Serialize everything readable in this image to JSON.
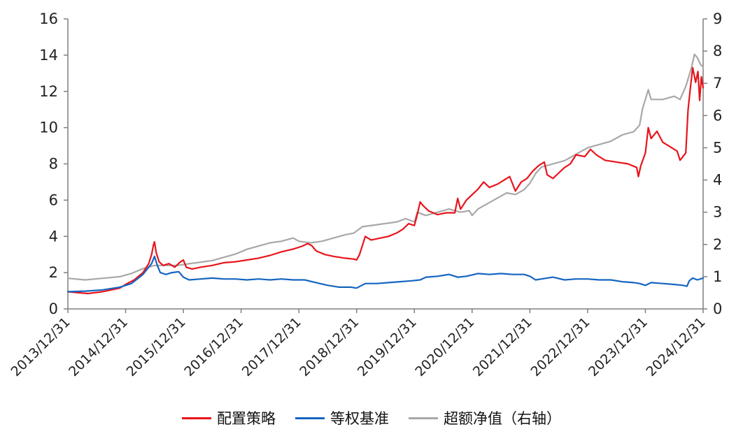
{
  "colors": {
    "strategy": "#e8141c",
    "benchmark": "#1565c0",
    "excess": "#a8a8a8",
    "axis": "#7f7f7f"
  },
  "chart_data": {
    "type": "line",
    "x_tick_labels": [
      "2013/12/31",
      "2014/12/31",
      "2015/12/31",
      "2016/12/31",
      "2017/12/31",
      "2018/12/31",
      "2019/12/31",
      "2020/12/31",
      "2021/12/31",
      "2022/12/31",
      "2023/12/31",
      "2024/12/31"
    ],
    "y_left": {
      "min": 0,
      "max": 16,
      "ticks": [
        0,
        2,
        4,
        6,
        8,
        10,
        12,
        14,
        16
      ]
    },
    "y_right": {
      "min": 0,
      "max": 9,
      "ticks": [
        0,
        1,
        2,
        3,
        4,
        5,
        6,
        7,
        8,
        9
      ]
    },
    "grid": false,
    "legend_position": "bottom",
    "series": [
      {
        "name": "配置策略",
        "axis": "left",
        "color_key": "strategy",
        "points": [
          [
            2013.0,
            0.95
          ],
          [
            2013.15,
            0.9
          ],
          [
            2013.35,
            0.85
          ],
          [
            2013.6,
            0.95
          ],
          [
            2013.9,
            1.15
          ],
          [
            2014.0,
            1.35
          ],
          [
            2014.15,
            1.6
          ],
          [
            2014.3,
            2.0
          ],
          [
            2014.4,
            2.5
          ],
          [
            2014.45,
            3.0
          ],
          [
            2014.48,
            3.5
          ],
          [
            2014.5,
            3.7
          ],
          [
            2014.53,
            3.1
          ],
          [
            2014.58,
            2.6
          ],
          [
            2014.65,
            2.4
          ],
          [
            2014.75,
            2.5
          ],
          [
            2014.85,
            2.3
          ],
          [
            2014.95,
            2.6
          ],
          [
            2015.0,
            2.7
          ],
          [
            2015.05,
            2.3
          ],
          [
            2015.15,
            2.2
          ],
          [
            2015.3,
            2.3
          ],
          [
            2015.5,
            2.4
          ],
          [
            2015.7,
            2.55
          ],
          [
            2015.9,
            2.6
          ],
          [
            2016.1,
            2.7
          ],
          [
            2016.3,
            2.8
          ],
          [
            2016.5,
            2.95
          ],
          [
            2016.7,
            3.15
          ],
          [
            2016.9,
            3.3
          ],
          [
            2017.05,
            3.45
          ],
          [
            2017.15,
            3.6
          ],
          [
            2017.22,
            3.5
          ],
          [
            2017.3,
            3.2
          ],
          [
            2017.45,
            3.0
          ],
          [
            2017.6,
            2.9
          ],
          [
            2017.8,
            2.8
          ],
          [
            2017.95,
            2.75
          ],
          [
            2018.0,
            2.7
          ],
          [
            2018.05,
            3.0
          ],
          [
            2018.1,
            3.5
          ],
          [
            2018.15,
            4.0
          ],
          [
            2018.25,
            3.8
          ],
          [
            2018.4,
            3.9
          ],
          [
            2018.55,
            4.0
          ],
          [
            2018.7,
            4.2
          ],
          [
            2018.8,
            4.4
          ],
          [
            2018.9,
            4.7
          ],
          [
            2019.0,
            4.6
          ],
          [
            2019.05,
            5.2
          ],
          [
            2019.1,
            5.9
          ],
          [
            2019.15,
            5.7
          ],
          [
            2019.25,
            5.4
          ],
          [
            2019.4,
            5.2
          ],
          [
            2019.55,
            5.3
          ],
          [
            2019.7,
            5.3
          ],
          [
            2019.75,
            6.1
          ],
          [
            2019.8,
            5.5
          ],
          [
            2019.9,
            6.0
          ],
          [
            2020.0,
            6.3
          ],
          [
            2020.1,
            6.6
          ],
          [
            2020.2,
            7.0
          ],
          [
            2020.3,
            6.7
          ],
          [
            2020.45,
            6.9
          ],
          [
            2020.55,
            7.1
          ],
          [
            2020.65,
            7.3
          ],
          [
            2020.75,
            6.5
          ],
          [
            2020.85,
            7.0
          ],
          [
            2020.95,
            7.2
          ],
          [
            2021.05,
            7.6
          ],
          [
            2021.15,
            7.9
          ],
          [
            2021.25,
            8.1
          ],
          [
            2021.3,
            7.4
          ],
          [
            2021.4,
            7.2
          ],
          [
            2021.5,
            7.5
          ],
          [
            2021.6,
            7.8
          ],
          [
            2021.7,
            8.0
          ],
          [
            2021.8,
            8.5
          ],
          [
            2021.95,
            8.4
          ],
          [
            2022.05,
            8.8
          ],
          [
            2022.15,
            8.5
          ],
          [
            2022.3,
            8.2
          ],
          [
            2022.5,
            8.1
          ],
          [
            2022.7,
            8.0
          ],
          [
            2022.85,
            7.8
          ],
          [
            2022.88,
            7.3
          ],
          [
            2022.92,
            7.9
          ],
          [
            2023.0,
            8.6
          ],
          [
            2023.05,
            10.0
          ],
          [
            2023.1,
            9.4
          ],
          [
            2023.2,
            9.8
          ],
          [
            2023.3,
            9.2
          ],
          [
            2023.4,
            9.0
          ],
          [
            2023.5,
            8.8
          ],
          [
            2023.55,
            8.7
          ],
          [
            2023.6,
            8.2
          ],
          [
            2023.7,
            8.6
          ],
          [
            2023.74,
            11.0
          ],
          [
            2023.78,
            12.2
          ],
          [
            2023.82,
            13.3
          ],
          [
            2023.87,
            12.5
          ],
          [
            2023.91,
            13.1
          ],
          [
            2023.94,
            11.5
          ],
          [
            2023.97,
            12.8
          ],
          [
            2024.0,
            12.2
          ]
        ]
      },
      {
        "name": "等权基准",
        "axis": "left",
        "color_key": "benchmark",
        "points": [
          [
            2013.0,
            0.95
          ],
          [
            2013.3,
            0.98
          ],
          [
            2013.6,
            1.05
          ],
          [
            2013.9,
            1.2
          ],
          [
            2014.1,
            1.4
          ],
          [
            2014.3,
            1.9
          ],
          [
            2014.45,
            2.5
          ],
          [
            2014.5,
            2.9
          ],
          [
            2014.55,
            2.4
          ],
          [
            2014.6,
            2.0
          ],
          [
            2014.7,
            1.9
          ],
          [
            2014.8,
            2.0
          ],
          [
            2014.92,
            2.05
          ],
          [
            2015.0,
            1.75
          ],
          [
            2015.1,
            1.6
          ],
          [
            2015.3,
            1.65
          ],
          [
            2015.5,
            1.7
          ],
          [
            2015.7,
            1.65
          ],
          [
            2015.9,
            1.65
          ],
          [
            2016.1,
            1.6
          ],
          [
            2016.3,
            1.65
          ],
          [
            2016.5,
            1.6
          ],
          [
            2016.7,
            1.65
          ],
          [
            2016.9,
            1.6
          ],
          [
            2017.1,
            1.6
          ],
          [
            2017.3,
            1.45
          ],
          [
            2017.5,
            1.3
          ],
          [
            2017.7,
            1.2
          ],
          [
            2017.9,
            1.2
          ],
          [
            2018.0,
            1.15
          ],
          [
            2018.15,
            1.4
          ],
          [
            2018.35,
            1.4
          ],
          [
            2018.55,
            1.45
          ],
          [
            2018.75,
            1.5
          ],
          [
            2018.95,
            1.55
          ],
          [
            2019.1,
            1.6
          ],
          [
            2019.2,
            1.75
          ],
          [
            2019.4,
            1.8
          ],
          [
            2019.6,
            1.9
          ],
          [
            2019.75,
            1.75
          ],
          [
            2019.9,
            1.8
          ],
          [
            2020.1,
            1.95
          ],
          [
            2020.3,
            1.9
          ],
          [
            2020.5,
            1.95
          ],
          [
            2020.7,
            1.9
          ],
          [
            2020.9,
            1.9
          ],
          [
            2021.0,
            1.8
          ],
          [
            2021.1,
            1.6
          ],
          [
            2021.2,
            1.65
          ],
          [
            2021.4,
            1.75
          ],
          [
            2021.6,
            1.6
          ],
          [
            2021.8,
            1.65
          ],
          [
            2022.0,
            1.65
          ],
          [
            2022.2,
            1.6
          ],
          [
            2022.4,
            1.6
          ],
          [
            2022.6,
            1.5
          ],
          [
            2022.8,
            1.45
          ],
          [
            2022.9,
            1.4
          ],
          [
            2023.0,
            1.3
          ],
          [
            2023.1,
            1.45
          ],
          [
            2023.3,
            1.4
          ],
          [
            2023.5,
            1.35
          ],
          [
            2023.65,
            1.3
          ],
          [
            2023.72,
            1.25
          ],
          [
            2023.76,
            1.55
          ],
          [
            2023.82,
            1.7
          ],
          [
            2023.9,
            1.6
          ],
          [
            2024.0,
            1.7
          ]
        ]
      },
      {
        "name": "超额净值（右轴）",
        "axis": "right",
        "color_key": "excess",
        "points": [
          [
            2013.0,
            0.95
          ],
          [
            2013.3,
            0.9
          ],
          [
            2013.6,
            0.95
          ],
          [
            2013.9,
            1.0
          ],
          [
            2014.1,
            1.1
          ],
          [
            2014.3,
            1.25
          ],
          [
            2014.5,
            1.35
          ],
          [
            2014.7,
            1.35
          ],
          [
            2014.9,
            1.35
          ],
          [
            2015.1,
            1.4
          ],
          [
            2015.3,
            1.45
          ],
          [
            2015.5,
            1.5
          ],
          [
            2015.7,
            1.6
          ],
          [
            2015.9,
            1.7
          ],
          [
            2016.1,
            1.85
          ],
          [
            2016.3,
            1.95
          ],
          [
            2016.5,
            2.05
          ],
          [
            2016.7,
            2.1
          ],
          [
            2016.9,
            2.2
          ],
          [
            2017.0,
            2.1
          ],
          [
            2017.2,
            2.05
          ],
          [
            2017.4,
            2.1
          ],
          [
            2017.6,
            2.2
          ],
          [
            2017.8,
            2.3
          ],
          [
            2017.95,
            2.35
          ],
          [
            2018.1,
            2.55
          ],
          [
            2018.3,
            2.6
          ],
          [
            2018.5,
            2.65
          ],
          [
            2018.7,
            2.7
          ],
          [
            2018.85,
            2.8
          ],
          [
            2019.0,
            2.7
          ],
          [
            2019.05,
            3.0
          ],
          [
            2019.2,
            2.9
          ],
          [
            2019.4,
            3.0
          ],
          [
            2019.6,
            3.1
          ],
          [
            2019.8,
            3.0
          ],
          [
            2019.95,
            3.05
          ],
          [
            2020.0,
            2.9
          ],
          [
            2020.1,
            3.1
          ],
          [
            2020.3,
            3.3
          ],
          [
            2020.5,
            3.5
          ],
          [
            2020.6,
            3.6
          ],
          [
            2020.75,
            3.55
          ],
          [
            2020.9,
            3.7
          ],
          [
            2021.0,
            3.9
          ],
          [
            2021.1,
            4.2
          ],
          [
            2021.2,
            4.4
          ],
          [
            2021.4,
            4.5
          ],
          [
            2021.6,
            4.6
          ],
          [
            2021.8,
            4.8
          ],
          [
            2022.0,
            5.0
          ],
          [
            2022.2,
            5.1
          ],
          [
            2022.4,
            5.2
          ],
          [
            2022.6,
            5.4
          ],
          [
            2022.8,
            5.5
          ],
          [
            2022.9,
            5.7
          ],
          [
            2022.95,
            6.2
          ],
          [
            2023.05,
            6.8
          ],
          [
            2023.1,
            6.5
          ],
          [
            2023.3,
            6.5
          ],
          [
            2023.5,
            6.6
          ],
          [
            2023.6,
            6.5
          ],
          [
            2023.7,
            6.9
          ],
          [
            2023.75,
            7.2
          ],
          [
            2023.8,
            7.5
          ],
          [
            2023.85,
            7.9
          ],
          [
            2023.9,
            7.8
          ],
          [
            2023.95,
            7.6
          ],
          [
            2024.0,
            7.5
          ]
        ]
      }
    ]
  },
  "legend": {
    "items": [
      {
        "label": "配置策略",
        "color_key": "strategy"
      },
      {
        "label": "等权基准",
        "color_key": "benchmark"
      },
      {
        "label": "超额净值（右轴）",
        "color_key": "excess"
      }
    ]
  }
}
